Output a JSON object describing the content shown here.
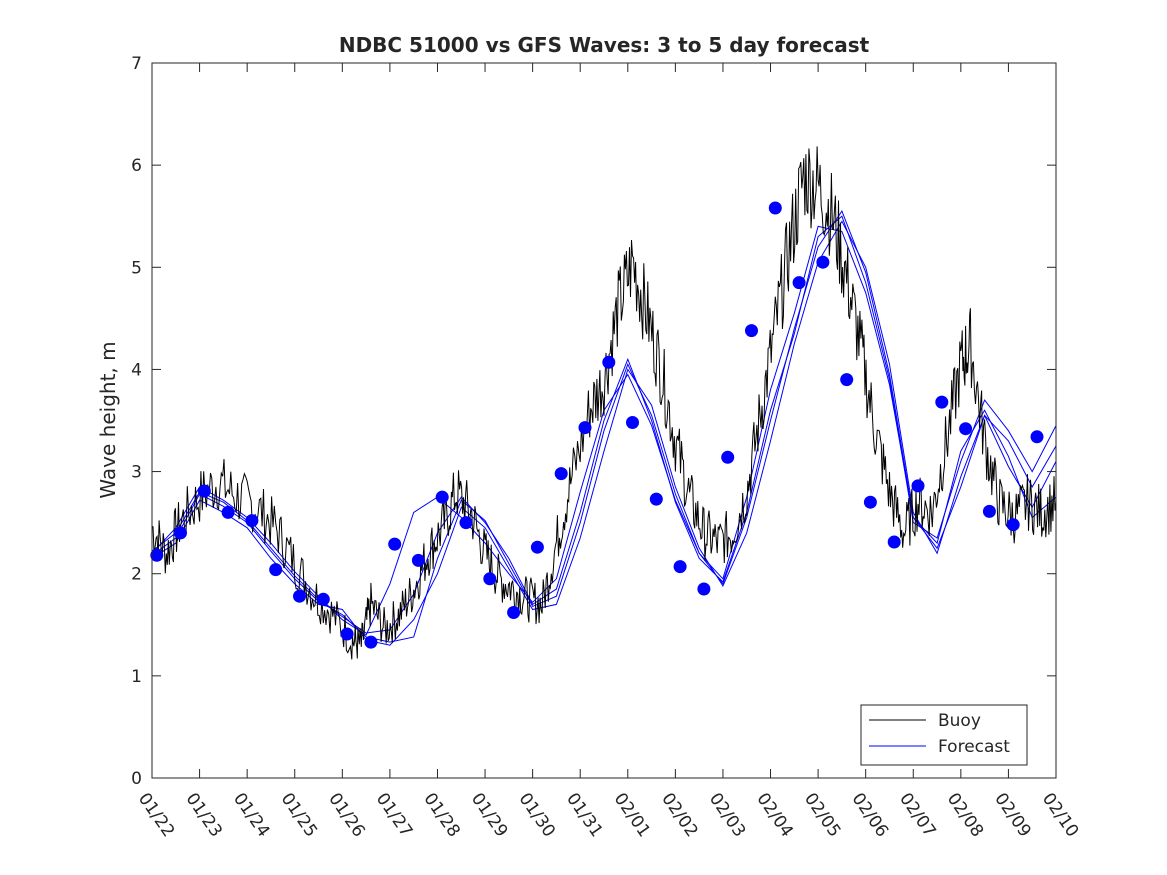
{
  "chart_data": {
    "type": "line",
    "title": "NDBC 51000 vs GFS Waves: 3 to 5 day forecast",
    "xlabel": "",
    "ylabel": "Wave height, m",
    "ylim": [
      0,
      7
    ],
    "xlim": [
      0,
      19
    ],
    "yticks": [
      0,
      1,
      2,
      3,
      4,
      5,
      6,
      7
    ],
    "xticks": [
      {
        "v": 0,
        "label": "01/22"
      },
      {
        "v": 1,
        "label": "01/23"
      },
      {
        "v": 2,
        "label": "01/24"
      },
      {
        "v": 3,
        "label": "01/25"
      },
      {
        "v": 4,
        "label": "01/26"
      },
      {
        "v": 5,
        "label": "01/27"
      },
      {
        "v": 6,
        "label": "01/28"
      },
      {
        "v": 7,
        "label": "01/29"
      },
      {
        "v": 8,
        "label": "01/30"
      },
      {
        "v": 9,
        "label": "01/31"
      },
      {
        "v": 10,
        "label": "02/01"
      },
      {
        "v": 11,
        "label": "02/02"
      },
      {
        "v": 12,
        "label": "02/03"
      },
      {
        "v": 13,
        "label": "02/04"
      },
      {
        "v": 14,
        "label": "02/05"
      },
      {
        "v": 15,
        "label": "02/06"
      },
      {
        "v": 16,
        "label": "02/07"
      },
      {
        "v": 17,
        "label": "02/08"
      },
      {
        "v": 18,
        "label": "02/09"
      },
      {
        "v": 19,
        "label": "02/10"
      }
    ],
    "legend": {
      "position": "bottom-right",
      "entries": [
        "Buoy",
        "Forecast"
      ]
    },
    "colors": {
      "buoy": "#000000",
      "forecast": "#0000ff",
      "axis": "#262626"
    },
    "buoy_anchors": [
      [
        0.0,
        2.45
      ],
      [
        0.3,
        2.2
      ],
      [
        0.6,
        2.5
      ],
      [
        1.0,
        2.75
      ],
      [
        1.4,
        2.9
      ],
      [
        1.8,
        2.75
      ],
      [
        2.2,
        2.65
      ],
      [
        2.6,
        2.45
      ],
      [
        3.0,
        2.1
      ],
      [
        3.4,
        1.8
      ],
      [
        3.8,
        1.6
      ],
      [
        4.2,
        1.35
      ],
      [
        4.4,
        1.3
      ],
      [
        4.6,
        1.7
      ],
      [
        4.9,
        1.45
      ],
      [
        5.2,
        1.6
      ],
      [
        5.5,
        1.85
      ],
      [
        5.8,
        2.2
      ],
      [
        6.1,
        2.45
      ],
      [
        6.4,
        2.8
      ],
      [
        6.7,
        2.6
      ],
      [
        7.0,
        2.2
      ],
      [
        7.3,
        1.95
      ],
      [
        7.6,
        1.85
      ],
      [
        7.9,
        1.75
      ],
      [
        8.2,
        1.7
      ],
      [
        8.5,
        2.3
      ],
      [
        8.8,
        2.9
      ],
      [
        9.2,
        3.6
      ],
      [
        9.5,
        3.9
      ],
      [
        9.8,
        4.6
      ],
      [
        10.1,
        5.05
      ],
      [
        10.4,
        4.55
      ],
      [
        10.7,
        4.0
      ],
      [
        11.0,
        3.3
      ],
      [
        11.3,
        2.75
      ],
      [
        11.6,
        2.4
      ],
      [
        11.9,
        2.3
      ],
      [
        12.2,
        2.4
      ],
      [
        12.5,
        2.8
      ],
      [
        12.8,
        3.6
      ],
      [
        13.1,
        4.4
      ],
      [
        13.4,
        5.2
      ],
      [
        13.7,
        5.9
      ],
      [
        14.0,
        5.8
      ],
      [
        14.3,
        5.5
      ],
      [
        14.6,
        4.9
      ],
      [
        14.9,
        4.2
      ],
      [
        15.2,
        3.4
      ],
      [
        15.5,
        2.8
      ],
      [
        15.8,
        2.4
      ],
      [
        16.1,
        2.7
      ],
      [
        16.4,
        2.6
      ],
      [
        16.7,
        3.3
      ],
      [
        17.0,
        4.05
      ],
      [
        17.2,
        4.25
      ],
      [
        17.5,
        3.3
      ],
      [
        17.8,
        2.7
      ],
      [
        18.1,
        2.55
      ],
      [
        18.4,
        2.7
      ],
      [
        18.7,
        2.6
      ],
      [
        19.0,
        2.7
      ]
    ],
    "series": [
      {
        "name": "Forecast run 1",
        "x": [
          0.0,
          0.5,
          1.0,
          1.5,
          2.0,
          2.5,
          3.0,
          3.5,
          4.0,
          4.5,
          5.0,
          5.5,
          6.0,
          6.5,
          7.0,
          7.5,
          8.0,
          8.5,
          9.0,
          9.5,
          10.0,
          10.5,
          11.0,
          11.5,
          12.0,
          12.5,
          13.0,
          13.5,
          14.0,
          14.5,
          15.0,
          15.5,
          16.0,
          16.5,
          17.0,
          17.5,
          18.0,
          18.5,
          19.0
        ],
        "y": [
          2.18,
          2.35,
          2.78,
          2.66,
          2.5,
          2.22,
          1.95,
          1.73,
          1.6,
          1.38,
          1.33,
          1.38,
          2.15,
          2.72,
          2.52,
          2.1,
          1.68,
          1.78,
          2.5,
          3.4,
          4.05,
          3.55,
          2.78,
          2.2,
          1.9,
          2.55,
          3.5,
          4.4,
          5.2,
          5.55,
          4.95,
          3.95,
          2.55,
          2.3,
          3.2,
          3.6,
          3.15,
          2.55,
          2.75
        ]
      },
      {
        "name": "Forecast run 2",
        "x": [
          0.0,
          0.5,
          1.0,
          1.5,
          2.0,
          2.5,
          3.0,
          3.5,
          4.0,
          4.5,
          5.0,
          5.5,
          6.0,
          6.5,
          7.0,
          7.5,
          8.0,
          8.5,
          9.0,
          9.5,
          10.0,
          10.5,
          11.0,
          11.5,
          12.0,
          12.5,
          13.0,
          13.5,
          14.0,
          14.5,
          15.0,
          15.5,
          16.0,
          16.5,
          17.0,
          17.5,
          18.0,
          18.5,
          19.0
        ],
        "y": [
          2.2,
          2.45,
          2.85,
          2.72,
          2.55,
          2.3,
          2.02,
          1.78,
          1.55,
          1.4,
          1.9,
          2.6,
          2.75,
          2.55,
          2.3,
          2.0,
          1.72,
          1.95,
          2.8,
          3.6,
          3.95,
          3.45,
          2.72,
          2.2,
          1.95,
          2.75,
          3.8,
          4.55,
          5.4,
          5.35,
          4.75,
          3.85,
          2.55,
          2.25,
          2.85,
          3.55,
          3.3,
          2.85,
          3.25
        ]
      },
      {
        "name": "Forecast run 3",
        "x": [
          0.0,
          0.5,
          1.0,
          1.5,
          2.0,
          2.5,
          3.0,
          3.5,
          4.0,
          4.5,
          5.0,
          5.5,
          6.0,
          6.5,
          7.0,
          7.5,
          8.0,
          8.5,
          9.0,
          9.5,
          10.0,
          10.5,
          11.0,
          11.5,
          12.0,
          12.5,
          13.0,
          13.5,
          14.0,
          14.5,
          15.0,
          15.5,
          16.0,
          16.5,
          17.0,
          17.5,
          18.0,
          18.5,
          19.0
        ],
        "y": [
          2.15,
          2.3,
          2.72,
          2.6,
          2.45,
          2.15,
          1.9,
          1.7,
          1.65,
          1.35,
          1.3,
          1.55,
          2.0,
          2.65,
          2.45,
          2.05,
          1.65,
          1.7,
          2.35,
          3.2,
          4.0,
          3.65,
          2.85,
          2.25,
          1.88,
          2.4,
          3.3,
          4.25,
          5.05,
          5.45,
          5.0,
          4.05,
          2.6,
          2.2,
          2.95,
          3.55,
          3.05,
          2.65,
          3.1
        ]
      },
      {
        "name": "Forecast run 4",
        "x": [
          0.0,
          0.5,
          1.0,
          1.5,
          2.0,
          2.5,
          3.0,
          3.5,
          4.0,
          4.5,
          5.0,
          5.5,
          6.0,
          6.5,
          7.0,
          7.5,
          8.0,
          8.5,
          9.0,
          9.5,
          10.0,
          10.5,
          11.0,
          11.5,
          12.0,
          12.5,
          13.0,
          13.5,
          14.0,
          14.5,
          15.0,
          15.5,
          16.0,
          16.5,
          17.0,
          17.5,
          18.0,
          18.5,
          19.0
        ],
        "y": [
          2.22,
          2.4,
          2.8,
          2.7,
          2.52,
          2.25,
          1.98,
          1.75,
          1.58,
          1.42,
          1.45,
          1.8,
          2.4,
          2.75,
          2.5,
          2.15,
          1.7,
          1.85,
          2.6,
          3.5,
          4.1,
          3.5,
          2.7,
          2.15,
          1.92,
          2.6,
          3.6,
          4.35,
          5.3,
          5.5,
          4.85,
          3.9,
          2.5,
          2.35,
          3.1,
          3.7,
          3.4,
          3.0,
          3.45
        ]
      }
    ],
    "markers": {
      "name": "Forecast points",
      "x": [
        0.1,
        0.6,
        1.1,
        1.6,
        2.1,
        2.6,
        3.1,
        3.6,
        4.1,
        4.6,
        5.1,
        5.6,
        6.1,
        6.6,
        7.1,
        7.6,
        8.1,
        8.6,
        9.1,
        9.6,
        10.1,
        10.6,
        11.1,
        11.6,
        12.1,
        12.6,
        13.1,
        13.6,
        14.1,
        14.6,
        15.1,
        15.6,
        16.1,
        16.6,
        17.1,
        17.6,
        18.1,
        18.6
      ],
      "y": [
        2.18,
        2.4,
        2.81,
        2.6,
        2.52,
        2.04,
        1.78,
        1.75,
        1.41,
        1.33,
        2.29,
        2.13,
        2.75,
        2.5,
        1.95,
        1.62,
        2.26,
        2.98,
        3.43,
        4.07,
        3.48,
        2.73,
        2.07,
        1.85,
        3.14,
        4.38,
        5.58,
        4.85,
        5.05,
        3.9,
        2.7,
        2.31,
        2.86,
        3.68,
        3.42,
        2.61,
        2.48,
        3.34
      ]
    }
  }
}
